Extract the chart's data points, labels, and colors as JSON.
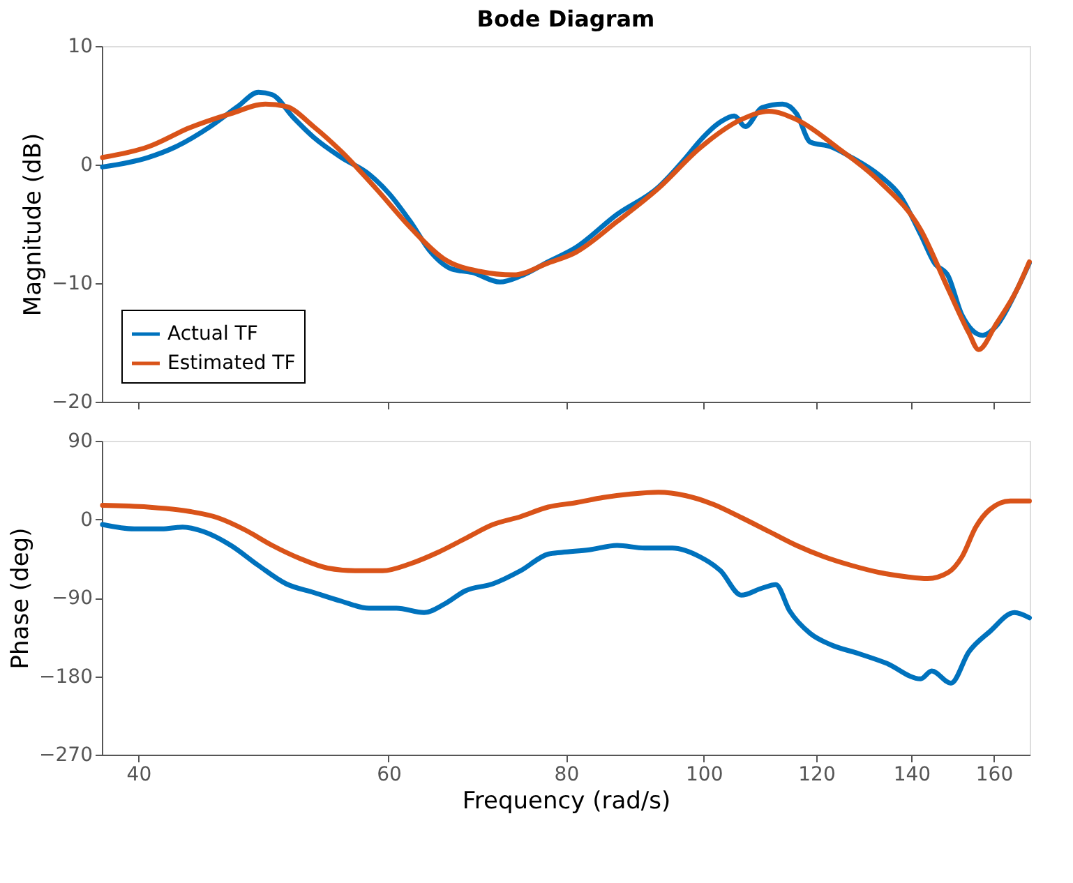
{
  "chart_data": [
    {
      "type": "line",
      "title": "Bode Diagram",
      "ylabel": "Magnitude (dB)",
      "log": "x",
      "xlim": [
        37.7,
        169.6
      ],
      "xticks": [
        40,
        60,
        80,
        100,
        120,
        140,
        160
      ],
      "ylim": [
        -20,
        10
      ],
      "yticks": [
        -20,
        -10,
        0,
        10
      ],
      "tick_labels": "y",
      "grid": false,
      "legend": "bottom left",
      "series": [
        {
          "name": "Actual TF",
          "color": "#0072bd",
          "x": [
            37.74,
            40.63,
            42.49,
            44.93,
            46.99,
            48.59,
            49.69,
            51.39,
            53.14,
            55.58,
            58.12,
            60.1,
            62.15,
            64.27,
            66.46,
            68.72,
            71.86,
            74.31,
            77.7,
            81.26,
            86.89,
            92.92,
            97.16,
            99.36,
            102.75,
            105.07,
            106.97,
            109.89,
            113.64,
            116.21,
            118.84,
            122.89,
            127.08,
            132.89,
            137.43,
            142.12,
            145.32,
            148.61,
            151.97,
            157.15,
            160.7,
            166.19,
            169.5
          ],
          "values": [
            -0.2,
            0.6,
            1.5,
            3.2,
            4.9,
            6.1,
            5.9,
            4.0,
            2.3,
            0.6,
            -0.8,
            -2.5,
            -4.8,
            -7.4,
            -8.8,
            -9.1,
            -9.9,
            -9.4,
            -8.2,
            -7.0,
            -4.2,
            -1.9,
            0.6,
            2.0,
            3.6,
            4.1,
            3.2,
            4.8,
            5.1,
            4.3,
            1.9,
            1.5,
            0.6,
            -0.9,
            -2.6,
            -5.9,
            -8.3,
            -9.4,
            -12.7,
            -14.4,
            -13.6,
            -10.5,
            -8.3
          ]
        },
        {
          "name": "Estimated TF",
          "color": "#d95319",
          "x": [
            37.74,
            40.63,
            43.45,
            46.47,
            49.14,
            50.82,
            53.14,
            55.58,
            58.77,
            62.15,
            65.72,
            69.49,
            73.48,
            77.7,
            81.26,
            86.89,
            92.92,
            99.36,
            106.26,
            111.13,
            116.21,
            124.27,
            132.89,
            142.12,
            148.61,
            153.68,
            156.1,
            160.7,
            166.19,
            169.5
          ],
          "values": [
            0.6,
            1.5,
            3.1,
            4.3,
            5.1,
            4.9,
            3.2,
            1.1,
            -2.0,
            -5.3,
            -8.0,
            -9.0,
            -9.3,
            -8.3,
            -7.4,
            -4.8,
            -2.0,
            1.4,
            3.8,
            4.5,
            3.8,
            1.4,
            -1.4,
            -5.5,
            -10.5,
            -14.2,
            -15.6,
            -13.4,
            -10.5,
            -8.2
          ]
        }
      ]
    },
    {
      "type": "line",
      "xlabel": "Frequency  (rad/s)",
      "ylabel": "Phase (deg)",
      "log": "x",
      "xlim": [
        37.7,
        169.6
      ],
      "xticks": [
        40,
        60,
        80,
        100,
        120,
        140,
        160
      ],
      "ylim": [
        -270,
        90
      ],
      "yticks": [
        -270,
        -180,
        -90,
        0,
        90
      ],
      "grid": false,
      "series": [
        {
          "color": "#0072bd",
          "x": [
            37.74,
            39.73,
            41.55,
            42.97,
            44.43,
            46.47,
            48.59,
            50.82,
            53.14,
            55.58,
            58.12,
            60.77,
            63.56,
            65.72,
            67.96,
            71.06,
            74.31,
            77.7,
            79.46,
            83.09,
            86.89,
            90.86,
            95.02,
            99.36,
            102.75,
            106.26,
            109.89,
            112.38,
            114.92,
            118.84,
            122.89,
            128.51,
            134.39,
            142.12,
            144.68,
            149.27,
            153.68,
            158.92,
            165.45,
            169.5
          ],
          "values": [
            -6,
            -11,
            -11,
            -9,
            -14,
            -30,
            -53,
            -74,
            -84,
            -94,
            -102,
            -102,
            -107,
            -97,
            -82,
            -74,
            -59,
            -40,
            -38,
            -35,
            -30,
            -33,
            -33,
            -43,
            -59,
            -87,
            -79,
            -75,
            -105,
            -131,
            -144,
            -154,
            -165,
            -183,
            -174,
            -188,
            -152,
            -129,
            -107,
            -113
          ]
        },
        {
          "color": "#d95319",
          "x": [
            37.74,
            40.63,
            43.45,
            45.44,
            47.52,
            49.69,
            51.97,
            54.35,
            56.83,
            59.43,
            62.15,
            64.99,
            67.96,
            71.06,
            74.31,
            77.7,
            81.26,
            84.97,
            88.86,
            92.92,
            97.16,
            101.6,
            106.26,
            111.13,
            116.21,
            121.53,
            127.08,
            132.89,
            138.97,
            143.71,
            148.61,
            151.97,
            155.4,
            158.92,
            164.35,
            169.5
          ],
          "values": [
            16,
            14,
            9,
            2,
            -12,
            -30,
            -45,
            -56,
            -59,
            -59,
            -51,
            -38,
            -22,
            -6,
            3,
            14,
            19,
            25,
            29,
            31,
            27,
            17,
            2,
            -14,
            -30,
            -43,
            -53,
            -61,
            -66,
            -68,
            -61,
            -43,
            -9,
            11,
            21,
            21
          ]
        }
      ]
    }
  ]
}
